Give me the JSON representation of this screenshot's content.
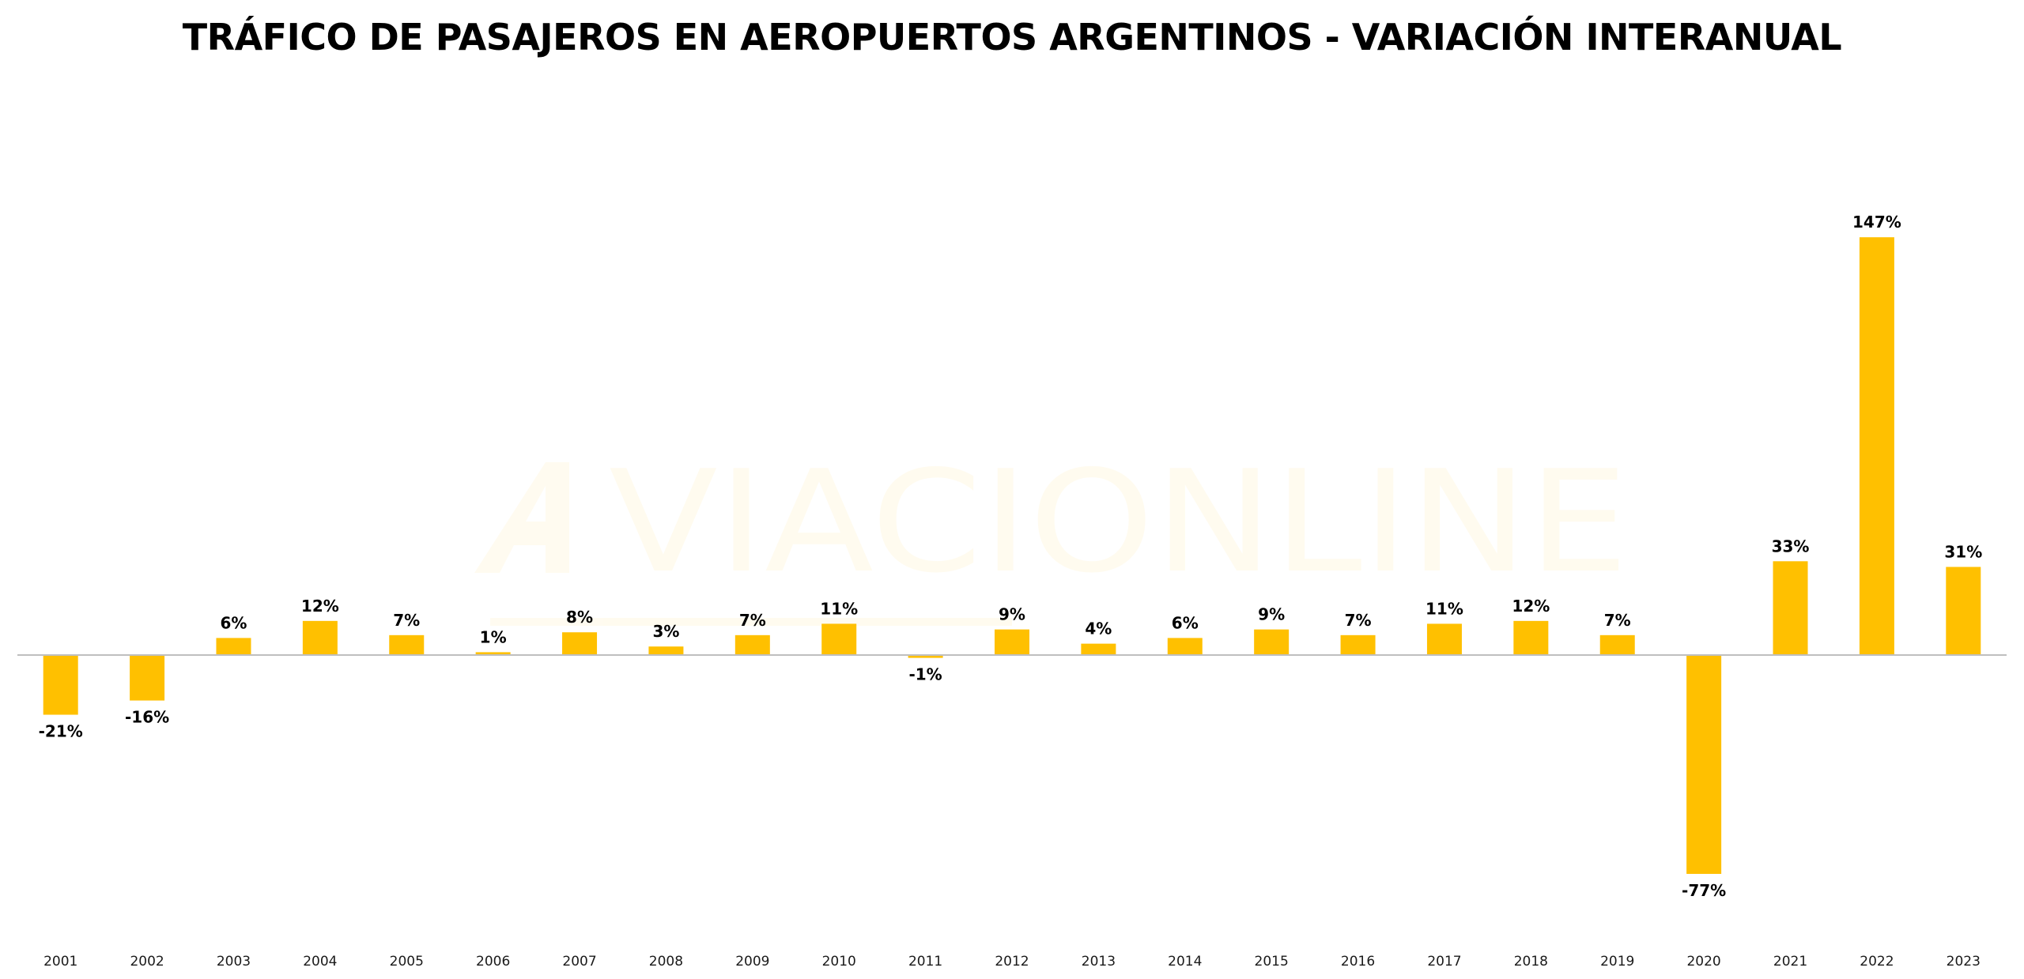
{
  "chart_data": {
    "type": "bar",
    "title": "TRÁFICO DE PASAJEROS EN AEROPUERTOS ARGENTINOS - VARIACIÓN INTERANUAL",
    "xlabel": "",
    "ylabel": "",
    "unit": "%",
    "categories": [
      "2001",
      "2002",
      "2003",
      "2004",
      "2005",
      "2006",
      "2007",
      "2008",
      "2009",
      "2010",
      "2011",
      "2012",
      "2013",
      "2014",
      "2015",
      "2016",
      "2017",
      "2018",
      "2019",
      "2020",
      "2021",
      "2022",
      "2023"
    ],
    "values": [
      -21,
      -16,
      6,
      12,
      7,
      1,
      8,
      3,
      7,
      11,
      -1,
      9,
      4,
      6,
      9,
      7,
      11,
      12,
      7,
      -77,
      33,
      147,
      31
    ],
    "data_labels": [
      "-21%",
      "-16%",
      "6%",
      "12%",
      "7%",
      "1%",
      "8%",
      "3%",
      "7%",
      "11%",
      "-1%",
      "9%",
      "4%",
      "6%",
      "9%",
      "7%",
      "11%",
      "12%",
      "7%",
      "-77%",
      "33%",
      "147%",
      "31%"
    ],
    "ylim": [
      -100,
      150
    ],
    "grid": false,
    "legend": "none",
    "bar_color": "#FFC000",
    "axis_color": "#BFBFBF"
  },
  "watermark": {
    "brand": "VIACIONLINE",
    "brand_color": "#FFC000"
  }
}
